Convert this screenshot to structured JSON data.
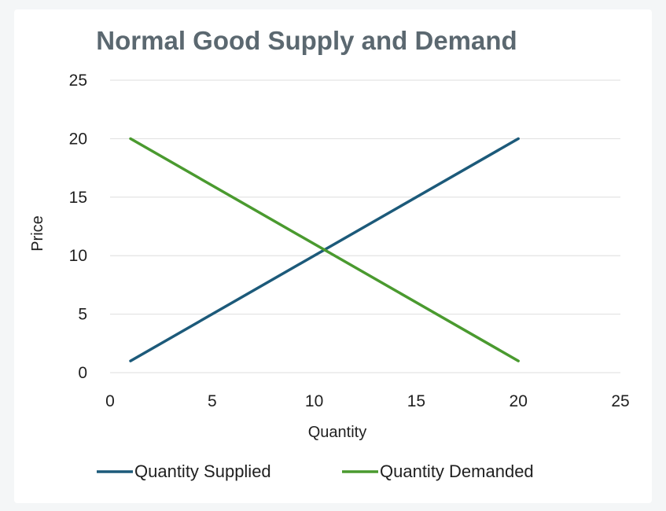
{
  "chart_data": {
    "type": "line",
    "title": "Normal Good Supply and Demand",
    "xlabel": "Quantity",
    "ylabel": "Price",
    "xlim": [
      0,
      25
    ],
    "ylim": [
      0,
      25
    ],
    "x_ticks": [
      "0",
      "5",
      "10",
      "15",
      "20",
      "25"
    ],
    "y_ticks": [
      "0",
      "5",
      "10",
      "15",
      "20",
      "25"
    ],
    "grid": "horizontal",
    "legend_position": "bottom",
    "series": [
      {
        "name": "Quantity Supplied",
        "color": "#1c5a7a",
        "points": [
          [
            1,
            1
          ],
          [
            20,
            20
          ]
        ]
      },
      {
        "name": "Quantity Demanded",
        "color": "#4a9a2f",
        "points": [
          [
            1,
            20
          ],
          [
            20,
            1
          ]
        ]
      }
    ]
  }
}
